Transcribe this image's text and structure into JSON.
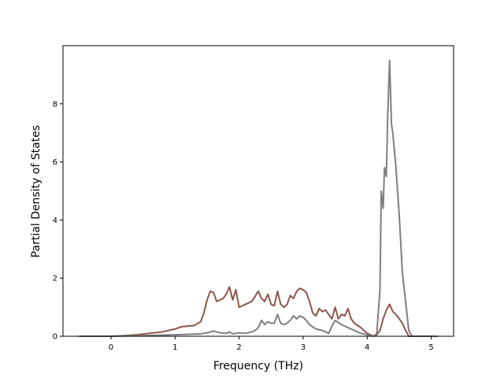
{
  "chart_data": {
    "type": "line",
    "title": "",
    "xlabel": "Frequency (THz)",
    "ylabel": "Partial Density of States",
    "xlim": [
      -0.75,
      5.35
    ],
    "ylim": [
      0,
      10
    ],
    "xticks": [
      0,
      1,
      2,
      3,
      4,
      5
    ],
    "xtick_labels": [
      "0",
      "1",
      "2",
      "3",
      "4",
      "5"
    ],
    "yticks": [
      0,
      2,
      4,
      6,
      8
    ],
    "ytick_labels": [
      "0",
      "2",
      "4",
      "6",
      "8"
    ],
    "grid": false,
    "legend": false,
    "series": [
      {
        "color": "#8c564b",
        "x": [
          -0.5,
          0.0,
          0.2,
          0.4,
          0.6,
          0.8,
          1.0,
          1.1,
          1.2,
          1.3,
          1.4,
          1.45,
          1.5,
          1.55,
          1.6,
          1.65,
          1.7,
          1.75,
          1.8,
          1.85,
          1.9,
          1.95,
          2.0,
          2.1,
          2.2,
          2.3,
          2.35,
          2.4,
          2.45,
          2.5,
          2.55,
          2.6,
          2.65,
          2.7,
          2.75,
          2.8,
          2.85,
          2.9,
          2.95,
          3.0,
          3.05,
          3.1,
          3.15,
          3.2,
          3.25,
          3.3,
          3.35,
          3.4,
          3.45,
          3.5,
          3.55,
          3.6,
          3.65,
          3.7,
          3.75,
          3.8,
          3.9,
          4.0,
          4.1,
          4.15,
          4.2,
          4.25,
          4.3,
          4.35,
          4.4,
          4.45,
          4.5,
          4.55,
          4.6,
          4.65,
          4.7,
          5.0,
          5.1
        ],
        "y": [
          0,
          0,
          0.02,
          0.05,
          0.1,
          0.15,
          0.25,
          0.33,
          0.35,
          0.37,
          0.5,
          0.8,
          1.25,
          1.55,
          1.5,
          1.2,
          1.25,
          1.3,
          1.45,
          1.7,
          1.25,
          1.6,
          1.0,
          1.1,
          1.2,
          1.55,
          1.3,
          1.2,
          1.45,
          1.1,
          1.05,
          1.55,
          1.1,
          1.0,
          1.1,
          1.4,
          1.3,
          1.55,
          1.65,
          1.6,
          1.5,
          1.2,
          0.8,
          0.7,
          0.95,
          0.85,
          0.9,
          0.75,
          0.6,
          1.0,
          0.6,
          0.75,
          0.7,
          0.95,
          0.6,
          0.45,
          0.3,
          0.1,
          0.0,
          0.05,
          0.2,
          0.6,
          0.9,
          1.1,
          0.85,
          0.75,
          0.6,
          0.45,
          0.2,
          0.0,
          0.0,
          0.0,
          0.0
        ]
      },
      {
        "color": "#7f7f7f",
        "x": [
          -0.5,
          0.0,
          0.5,
          1.0,
          1.4,
          1.5,
          1.6,
          1.7,
          1.8,
          1.85,
          1.9,
          2.0,
          2.1,
          2.2,
          2.25,
          2.3,
          2.35,
          2.4,
          2.45,
          2.5,
          2.55,
          2.6,
          2.65,
          2.7,
          2.75,
          2.8,
          2.85,
          2.9,
          2.95,
          3.0,
          3.05,
          3.1,
          3.2,
          3.3,
          3.35,
          3.4,
          3.45,
          3.5,
          3.6,
          3.7,
          3.8,
          3.9,
          4.0,
          4.1,
          4.15,
          4.2,
          4.22,
          4.25,
          4.27,
          4.3,
          4.32,
          4.35,
          4.38,
          4.4,
          4.45,
          4.5,
          4.55,
          4.6,
          4.65,
          4.7,
          5.0,
          5.1
        ],
        "y": [
          0,
          0,
          0.02,
          0.05,
          0.08,
          0.12,
          0.18,
          0.12,
          0.1,
          0.15,
          0.08,
          0.12,
          0.1,
          0.15,
          0.2,
          0.3,
          0.55,
          0.4,
          0.5,
          0.45,
          0.45,
          0.75,
          0.45,
          0.4,
          0.45,
          0.55,
          0.7,
          0.6,
          0.7,
          0.65,
          0.55,
          0.4,
          0.25,
          0.2,
          0.15,
          0.1,
          0.35,
          0.55,
          0.4,
          0.3,
          0.2,
          0.1,
          0.05,
          0.0,
          0.1,
          1.6,
          5.0,
          4.4,
          5.8,
          5.5,
          7.5,
          9.5,
          7.3,
          7.0,
          5.8,
          4.2,
          2.2,
          1.2,
          0.2,
          0.0,
          0.0,
          0.0
        ]
      }
    ]
  }
}
